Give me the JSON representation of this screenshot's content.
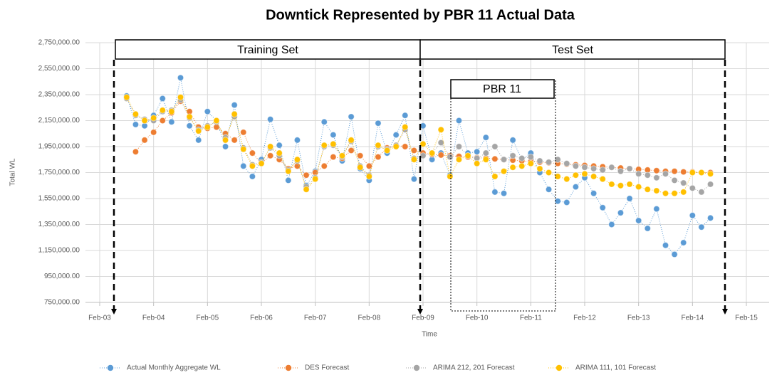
{
  "chart_data": {
    "type": "line",
    "title": "Downtick Represented by PBR 11 Actual Data",
    "x_label": "Time",
    "y_label": "Total WL",
    "annotations": [
      "Training Set",
      "Test Set",
      "PBR 11"
    ],
    "grid": true,
    "xlim": [
      "Feb-03",
      "Feb-15"
    ],
    "xticks": [
      "Feb-03",
      "Feb-04",
      "Feb-05",
      "Feb-06",
      "Feb-07",
      "Feb-08",
      "Feb-09",
      "Feb-10",
      "Feb-11",
      "Feb-12",
      "Feb-13",
      "Feb-14",
      "Feb-15"
    ],
    "ylim": [
      750000,
      2750000
    ],
    "yticks": [
      {
        "value": 750000,
        "label": "750,000.00"
      },
      {
        "value": 950000,
        "label": "950,000.00"
      },
      {
        "value": 1150000,
        "label": "1,150,000.00"
      },
      {
        "value": 1350000,
        "label": "1,350,000.00"
      },
      {
        "value": 1550000,
        "label": "1,550,000.00"
      },
      {
        "value": 1750000,
        "label": "1,750,000.00"
      },
      {
        "value": 1950000,
        "label": "1,950,000.00"
      },
      {
        "value": 2150000,
        "label": "2,150,000.00"
      },
      {
        "value": 2350000,
        "label": "2,350,000.00"
      },
      {
        "value": 2550000,
        "label": "2,550,000.00"
      },
      {
        "value": 2750000,
        "label": "2,750,000.00"
      }
    ],
    "x": [
      "Aug-03",
      "Oct-03",
      "Dec-03",
      "Feb-04",
      "Apr-04",
      "Jun-04",
      "Aug-04",
      "Oct-04",
      "Dec-04",
      "Feb-05",
      "Apr-05",
      "Jun-05",
      "Aug-05",
      "Oct-05",
      "Dec-05",
      "Feb-06",
      "Apr-06",
      "Jun-06",
      "Aug-06",
      "Oct-06",
      "Dec-06",
      "Feb-07",
      "Apr-07",
      "Jun-07",
      "Aug-07",
      "Oct-07",
      "Dec-07",
      "Feb-08",
      "Apr-08",
      "Jun-08",
      "Aug-08",
      "Oct-08",
      "Dec-08",
      "Feb-09",
      "Apr-09",
      "Jun-09",
      "Aug-09",
      "Oct-09",
      "Dec-09",
      "Feb-10",
      "Apr-10",
      "Jun-10",
      "Aug-10",
      "Oct-10",
      "Dec-10",
      "Feb-11",
      "Apr-11",
      "Jun-11",
      "Aug-11",
      "Oct-11",
      "Dec-11",
      "Feb-12",
      "Apr-12",
      "Jun-12",
      "Aug-12",
      "Oct-12",
      "Dec-12",
      "Feb-13",
      "Apr-13",
      "Jun-13",
      "Aug-13",
      "Oct-13",
      "Dec-13",
      "Feb-14",
      "Apr-14",
      "Jun-14"
    ],
    "series": [
      {
        "name": "Actual Monthly Aggregate WL",
        "color": "#5b9bd5",
        "values": [
          2340000,
          2120000,
          2110000,
          2190000,
          2320000,
          2140000,
          2480000,
          2110000,
          2000000,
          2220000,
          2150000,
          1950000,
          2270000,
          1800000,
          1720000,
          1850000,
          2160000,
          1960000,
          1690000,
          2000000,
          1650000,
          1760000,
          2140000,
          2040000,
          1840000,
          2180000,
          1780000,
          1690000,
          2130000,
          1900000,
          2040000,
          2190000,
          1700000,
          2110000,
          1850000,
          1900000,
          1730000,
          2150000,
          1900000,
          1910000,
          2020000,
          1600000,
          1590000,
          2000000,
          1850000,
          1900000,
          1750000,
          1620000,
          1530000,
          1520000,
          1640000,
          1710000,
          1590000,
          1480000,
          1350000,
          1440000,
          1550000,
          1380000,
          1320000,
          1470000,
          1190000,
          1120000,
          1210000,
          1420000,
          1330000,
          1400000
        ]
      },
      {
        "name": "DES Forecast",
        "color": "#ed7d31",
        "values": [
          null,
          1910000,
          2000000,
          2060000,
          2150000,
          2210000,
          2300000,
          2220000,
          2100000,
          2090000,
          2100000,
          2050000,
          2000000,
          2060000,
          1900000,
          1820000,
          1880000,
          1850000,
          1780000,
          1800000,
          1730000,
          1750000,
          1800000,
          1870000,
          1860000,
          1920000,
          1880000,
          1800000,
          1870000,
          1940000,
          1960000,
          1950000,
          1920000,
          1900000,
          1890000,
          1885000,
          1880000,
          1875000,
          1870000,
          1865000,
          1860000,
          1855000,
          1850000,
          1845000,
          1840000,
          1835000,
          1830000,
          1825000,
          1820000,
          1815000,
          1810000,
          1805000,
          1800000,
          1795000,
          1790000,
          1785000,
          1780000,
          1775000,
          1770000,
          1765000,
          1760000,
          1760000,
          1755000,
          1755000,
          1750000,
          1750000
        ]
      },
      {
        "name": "ARIMA 212, 201 Forecast",
        "color": "#a5a5a5",
        "values": [
          2320000,
          2190000,
          2160000,
          2150000,
          2220000,
          2230000,
          2310000,
          2170000,
          2080000,
          2110000,
          2140000,
          2020000,
          2180000,
          1940000,
          1810000,
          1830000,
          1940000,
          1880000,
          1770000,
          1840000,
          1640000,
          1710000,
          1950000,
          1960000,
          1870000,
          1990000,
          1800000,
          1730000,
          1950000,
          1930000,
          1960000,
          2080000,
          1860000,
          1880000,
          1900000,
          1980000,
          1870000,
          1950000,
          1880000,
          1860000,
          1900000,
          1950000,
          1850000,
          1880000,
          1860000,
          1870000,
          1840000,
          1830000,
          1850000,
          1820000,
          1800000,
          1790000,
          1780000,
          1770000,
          1790000,
          1760000,
          1780000,
          1740000,
          1730000,
          1710000,
          1740000,
          1690000,
          1670000,
          1630000,
          1600000,
          1660000
        ]
      },
      {
        "name": "ARIMA 111, 101 Forecast",
        "color": "#ffc000",
        "values": [
          2330000,
          2200000,
          2150000,
          2170000,
          2230000,
          2220000,
          2330000,
          2180000,
          2070000,
          2100000,
          2150000,
          2000000,
          2200000,
          1930000,
          1800000,
          1820000,
          1950000,
          1900000,
          1760000,
          1850000,
          1620000,
          1700000,
          1960000,
          1970000,
          1880000,
          2000000,
          1790000,
          1720000,
          1960000,
          1920000,
          1950000,
          2100000,
          1850000,
          1970000,
          1900000,
          2080000,
          1720000,
          1850000,
          1880000,
          1820000,
          1850000,
          1720000,
          1760000,
          1790000,
          1800000,
          1820000,
          1780000,
          1750000,
          1720000,
          1700000,
          1730000,
          1740000,
          1720000,
          1700000,
          1660000,
          1650000,
          1660000,
          1640000,
          1620000,
          1610000,
          1590000,
          1590000,
          1600000,
          1750000,
          1750000,
          1740000
        ]
      }
    ]
  }
}
